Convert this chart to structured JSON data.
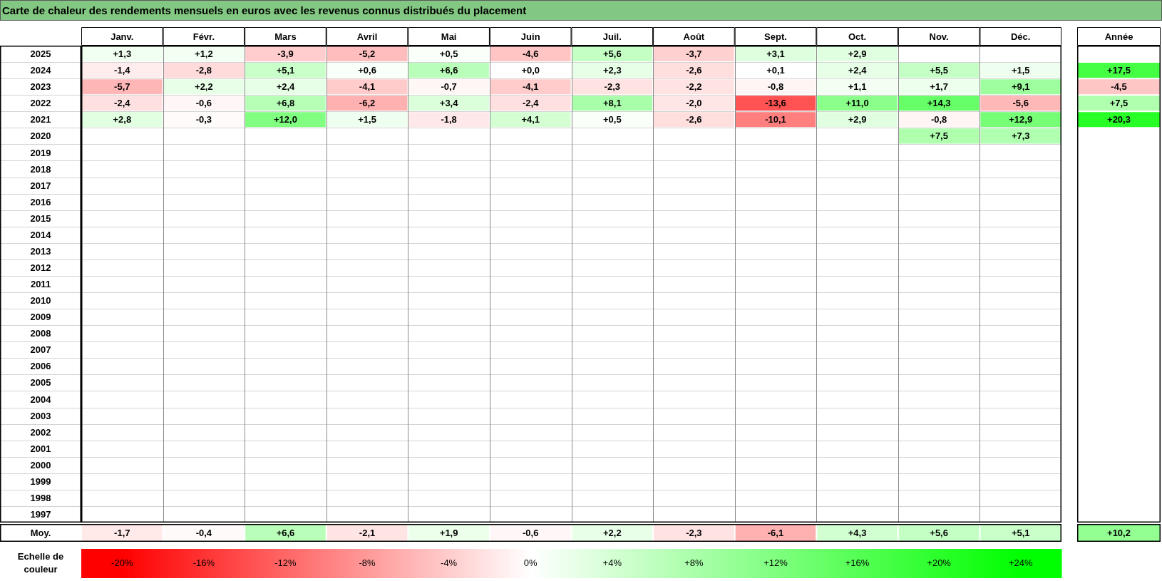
{
  "chart_data": {
    "type": "heatmap",
    "title": "Carte de chaleur des rendements mensuels en euros avec les revenus connus distribués du placement",
    "categories": [
      "Janv.",
      "Févr.",
      "Mars",
      "Avril",
      "Mai",
      "Juin",
      "Juil.",
      "Août",
      "Sept.",
      "Oct.",
      "Nov.",
      "Déc.",
      "Année"
    ],
    "y_categories": [
      "2025",
      "2024",
      "2023",
      "2022",
      "2021",
      "2020",
      "2019",
      "2018",
      "2017",
      "2016",
      "2015",
      "2014",
      "2013",
      "2012",
      "2011",
      "2010",
      "2009",
      "2008",
      "2007",
      "2006",
      "2005",
      "2004",
      "2003",
      "2002",
      "2001",
      "2000",
      "1999",
      "1998",
      "1997",
      "Moy."
    ],
    "cells": [
      [
        1.3,
        1.2,
        -3.9,
        -5.2,
        0.5,
        -4.6,
        5.6,
        -3.7,
        3.1,
        2.9,
        null,
        null,
        null
      ],
      [
        -1.4,
        -2.8,
        5.1,
        0.6,
        6.6,
        0.0,
        2.3,
        -2.6,
        0.1,
        2.4,
        5.5,
        1.5,
        17.5
      ],
      [
        -5.7,
        2.2,
        2.4,
        -4.1,
        -0.7,
        -4.1,
        -2.3,
        -2.2,
        -0.8,
        1.1,
        1.7,
        9.1,
        -4.5
      ],
      [
        -2.4,
        -0.6,
        6.8,
        -6.2,
        3.4,
        -2.4,
        8.1,
        -2.0,
        -13.6,
        11.0,
        14.3,
        -5.6,
        7.5
      ],
      [
        2.8,
        -0.3,
        12.0,
        1.5,
        -1.8,
        4.1,
        0.5,
        -2.6,
        -10.1,
        2.9,
        -0.8,
        12.9,
        20.3
      ],
      [
        null,
        null,
        null,
        null,
        null,
        null,
        null,
        null,
        null,
        null,
        7.5,
        7.3,
        null
      ],
      [
        null,
        null,
        null,
        null,
        null,
        null,
        null,
        null,
        null,
        null,
        null,
        null,
        null
      ],
      [
        null,
        null,
        null,
        null,
        null,
        null,
        null,
        null,
        null,
        null,
        null,
        null,
        null
      ],
      [
        null,
        null,
        null,
        null,
        null,
        null,
        null,
        null,
        null,
        null,
        null,
        null,
        null
      ],
      [
        null,
        null,
        null,
        null,
        null,
        null,
        null,
        null,
        null,
        null,
        null,
        null,
        null
      ],
      [
        null,
        null,
        null,
        null,
        null,
        null,
        null,
        null,
        null,
        null,
        null,
        null,
        null
      ],
      [
        null,
        null,
        null,
        null,
        null,
        null,
        null,
        null,
        null,
        null,
        null,
        null,
        null
      ],
      [
        null,
        null,
        null,
        null,
        null,
        null,
        null,
        null,
        null,
        null,
        null,
        null,
        null
      ],
      [
        null,
        null,
        null,
        null,
        null,
        null,
        null,
        null,
        null,
        null,
        null,
        null,
        null
      ],
      [
        null,
        null,
        null,
        null,
        null,
        null,
        null,
        null,
        null,
        null,
        null,
        null,
        null
      ],
      [
        null,
        null,
        null,
        null,
        null,
        null,
        null,
        null,
        null,
        null,
        null,
        null,
        null
      ],
      [
        null,
        null,
        null,
        null,
        null,
        null,
        null,
        null,
        null,
        null,
        null,
        null,
        null
      ],
      [
        null,
        null,
        null,
        null,
        null,
        null,
        null,
        null,
        null,
        null,
        null,
        null,
        null
      ],
      [
        null,
        null,
        null,
        null,
        null,
        null,
        null,
        null,
        null,
        null,
        null,
        null,
        null
      ],
      [
        null,
        null,
        null,
        null,
        null,
        null,
        null,
        null,
        null,
        null,
        null,
        null,
        null
      ],
      [
        null,
        null,
        null,
        null,
        null,
        null,
        null,
        null,
        null,
        null,
        null,
        null,
        null
      ],
      [
        null,
        null,
        null,
        null,
        null,
        null,
        null,
        null,
        null,
        null,
        null,
        null,
        null
      ],
      [
        null,
        null,
        null,
        null,
        null,
        null,
        null,
        null,
        null,
        null,
        null,
        null,
        null
      ],
      [
        null,
        null,
        null,
        null,
        null,
        null,
        null,
        null,
        null,
        null,
        null,
        null,
        null
      ],
      [
        null,
        null,
        null,
        null,
        null,
        null,
        null,
        null,
        null,
        null,
        null,
        null,
        null
      ],
      [
        null,
        null,
        null,
        null,
        null,
        null,
        null,
        null,
        null,
        null,
        null,
        null,
        null
      ],
      [
        null,
        null,
        null,
        null,
        null,
        null,
        null,
        null,
        null,
        null,
        null,
        null,
        null
      ],
      [
        null,
        null,
        null,
        null,
        null,
        null,
        null,
        null,
        null,
        null,
        null,
        null,
        null
      ],
      [
        null,
        null,
        null,
        null,
        null,
        null,
        null,
        null,
        null,
        null,
        null,
        null,
        null
      ],
      [
        -1.7,
        -0.4,
        6.6,
        -2.1,
        1.9,
        -0.6,
        2.2,
        -2.3,
        -6.1,
        4.3,
        5.6,
        5.1,
        10.2
      ]
    ],
    "cell_labels": [
      [
        "+1,3",
        "+1,2",
        "-3,9",
        "-5,2",
        "+0,5",
        "-4,6",
        "+5,6",
        "-3,7",
        "+3,1",
        "+2,9",
        null,
        null,
        null
      ],
      [
        "-1,4",
        "-2,8",
        "+5,1",
        "+0,6",
        "+6,6",
        "+0,0",
        "+2,3",
        "-2,6",
        "+0,1",
        "+2,4",
        "+5,5",
        "+1,5",
        "+17,5"
      ],
      [
        "-5,7",
        "+2,2",
        "+2,4",
        "-4,1",
        "-0,7",
        "-4,1",
        "-2,3",
        "-2,2",
        "-0,8",
        "+1,1",
        "+1,7",
        "+9,1",
        "-4,5"
      ],
      [
        "-2,4",
        "-0,6",
        "+6,8",
        "-6,2",
        "+3,4",
        "-2,4",
        "+8,1",
        "-2,0",
        "-13,6",
        "+11,0",
        "+14,3",
        "-5,6",
        "+7,5"
      ],
      [
        "+2,8",
        "-0,3",
        "+12,0",
        "+1,5",
        "-1,8",
        "+4,1",
        "+0,5",
        "-2,6",
        "-10,1",
        "+2,9",
        "-0,8",
        "+12,9",
        "+20,3"
      ],
      [
        null,
        null,
        null,
        null,
        null,
        null,
        null,
        null,
        null,
        null,
        "+7,5",
        "+7,3",
        null
      ],
      [
        null,
        null,
        null,
        null,
        null,
        null,
        null,
        null,
        null,
        null,
        null,
        null,
        null
      ],
      [
        null,
        null,
        null,
        null,
        null,
        null,
        null,
        null,
        null,
        null,
        null,
        null,
        null
      ],
      [
        null,
        null,
        null,
        null,
        null,
        null,
        null,
        null,
        null,
        null,
        null,
        null,
        null
      ],
      [
        null,
        null,
        null,
        null,
        null,
        null,
        null,
        null,
        null,
        null,
        null,
        null,
        null
      ],
      [
        null,
        null,
        null,
        null,
        null,
        null,
        null,
        null,
        null,
        null,
        null,
        null,
        null
      ],
      [
        null,
        null,
        null,
        null,
        null,
        null,
        null,
        null,
        null,
        null,
        null,
        null,
        null
      ],
      [
        null,
        null,
        null,
        null,
        null,
        null,
        null,
        null,
        null,
        null,
        null,
        null,
        null
      ],
      [
        null,
        null,
        null,
        null,
        null,
        null,
        null,
        null,
        null,
        null,
        null,
        null,
        null
      ],
      [
        null,
        null,
        null,
        null,
        null,
        null,
        null,
        null,
        null,
        null,
        null,
        null,
        null
      ],
      [
        null,
        null,
        null,
        null,
        null,
        null,
        null,
        null,
        null,
        null,
        null,
        null,
        null
      ],
      [
        null,
        null,
        null,
        null,
        null,
        null,
        null,
        null,
        null,
        null,
        null,
        null,
        null
      ],
      [
        null,
        null,
        null,
        null,
        null,
        null,
        null,
        null,
        null,
        null,
        null,
        null,
        null
      ],
      [
        null,
        null,
        null,
        null,
        null,
        null,
        null,
        null,
        null,
        null,
        null,
        null,
        null
      ],
      [
        null,
        null,
        null,
        null,
        null,
        null,
        null,
        null,
        null,
        null,
        null,
        null,
        null
      ],
      [
        null,
        null,
        null,
        null,
        null,
        null,
        null,
        null,
        null,
        null,
        null,
        null,
        null
      ],
      [
        null,
        null,
        null,
        null,
        null,
        null,
        null,
        null,
        null,
        null,
        null,
        null,
        null
      ],
      [
        null,
        null,
        null,
        null,
        null,
        null,
        null,
        null,
        null,
        null,
        null,
        null,
        null
      ],
      [
        null,
        null,
        null,
        null,
        null,
        null,
        null,
        null,
        null,
        null,
        null,
        null,
        null
      ],
      [
        null,
        null,
        null,
        null,
        null,
        null,
        null,
        null,
        null,
        null,
        null,
        null,
        null
      ],
      [
        null,
        null,
        null,
        null,
        null,
        null,
        null,
        null,
        null,
        null,
        null,
        null,
        null
      ],
      [
        null,
        null,
        null,
        null,
        null,
        null,
        null,
        null,
        null,
        null,
        null,
        null,
        null
      ],
      [
        null,
        null,
        null,
        null,
        null,
        null,
        null,
        null,
        null,
        null,
        null,
        null,
        null
      ],
      [
        null,
        null,
        null,
        null,
        null,
        null,
        null,
        null,
        null,
        null,
        null,
        null,
        null
      ],
      [
        "-1,7",
        "-0,4",
        "+6,6",
        "-2,1",
        "+1,9",
        "-0,6",
        "+2,2",
        "-2,3",
        "-6,1",
        "+4,3",
        "+5,6",
        "+5,1",
        "+10,2"
      ]
    ],
    "clabel": "Echelle de couleur",
    "clim": [
      -20,
      24
    ],
    "cticks": [
      {
        "value": -20,
        "label": "-20%"
      },
      {
        "value": -16,
        "label": "-16%"
      },
      {
        "value": -12,
        "label": "-12%"
      },
      {
        "value": -8,
        "label": "-8%"
      },
      {
        "value": -4,
        "label": "-4%"
      },
      {
        "value": 0,
        "label": "0%"
      },
      {
        "value": 4,
        "label": "+4%"
      },
      {
        "value": 8,
        "label": "+8%"
      },
      {
        "value": 12,
        "label": "+12%"
      },
      {
        "value": 16,
        "label": "+16%"
      },
      {
        "value": 20,
        "label": "+20%"
      },
      {
        "value": 24,
        "label": "+24%"
      }
    ]
  }
}
